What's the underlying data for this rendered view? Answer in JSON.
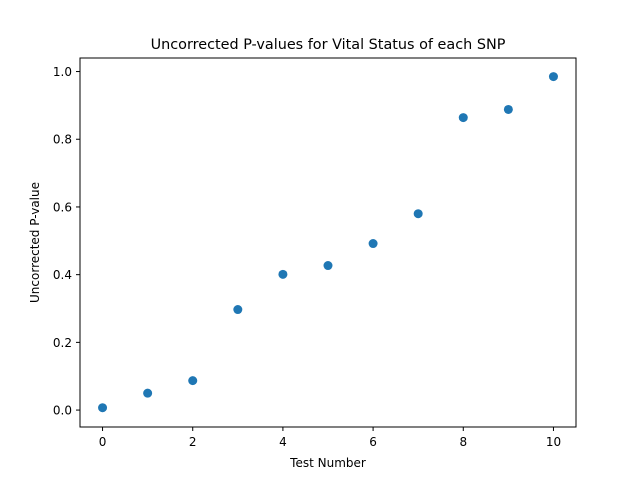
{
  "chart_data": {
    "type": "scatter",
    "title": "Uncorrected P-values for Vital Status of each SNP",
    "xlabel": "Test Number",
    "ylabel": "Uncorrected P-value",
    "x": [
      0,
      1,
      2,
      3,
      4,
      5,
      6,
      7,
      8,
      9,
      10
    ],
    "y": [
      0.007,
      0.05,
      0.087,
      0.297,
      0.401,
      0.427,
      0.492,
      0.58,
      0.864,
      0.888,
      0.985
    ],
    "xlim": [
      -0.5,
      10.5
    ],
    "ylim": [
      -0.05,
      1.04
    ],
    "xticks": [
      0,
      2,
      4,
      6,
      8,
      10
    ],
    "xtick_labels": [
      "0",
      "2",
      "4",
      "6",
      "8",
      "10"
    ],
    "yticks": [
      0.0,
      0.2,
      0.4,
      0.6,
      0.8,
      1.0
    ],
    "ytick_labels": [
      "0.0",
      "0.2",
      "0.4",
      "0.6",
      "0.8",
      "1.0"
    ],
    "grid": false,
    "marker_color": "#1f77b4"
  }
}
